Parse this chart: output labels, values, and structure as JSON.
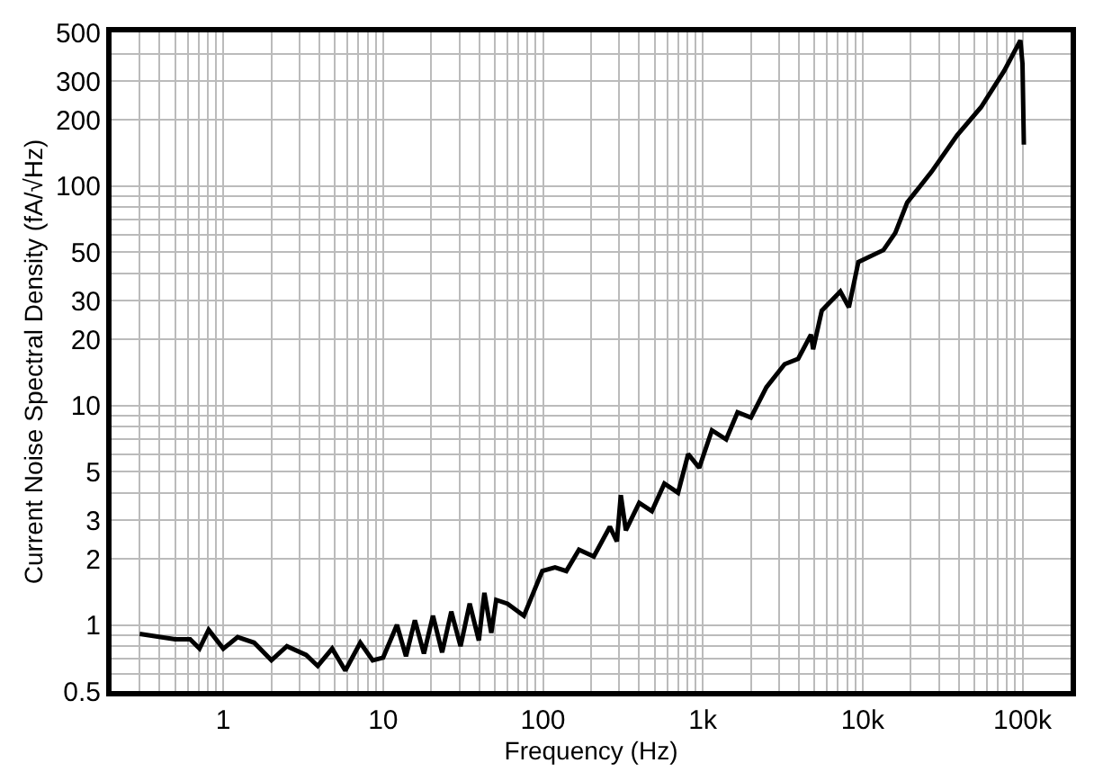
{
  "chart_data": {
    "type": "line",
    "xlabel": "Frequency (Hz)",
    "ylabel": "Current Noise Spectral Density (fA/√Hz)",
    "log": "xy",
    "grid": true,
    "marker": "none",
    "line_style": "solid",
    "xlim": [
      0.2,
      200000
    ],
    "ylim": [
      0.5,
      500
    ],
    "xticks": [
      1,
      10,
      100,
      {
        "value": 1000,
        "label": "1k"
      },
      {
        "value": 10000,
        "label": "10k"
      },
      {
        "value": 100000,
        "label": "100k"
      }
    ],
    "yticks": [
      0.5,
      1,
      2,
      3,
      5,
      10,
      20,
      30,
      50,
      100,
      200,
      300,
      500
    ],
    "series": [
      {
        "color": "#000000",
        "x": [
          0.3,
          0.5,
          0.62,
          0.71,
          0.81,
          1,
          1.23,
          1.56,
          2,
          2.5,
          3.3,
          3.9,
          4.8,
          5.8,
          7.2,
          8.6,
          10,
          12.2,
          13.9,
          15.8,
          18,
          20.5,
          23.4,
          26.7,
          30.5,
          34.8,
          39.7,
          43,
          47.5,
          51,
          60,
          76,
          87,
          99,
          119,
          140,
          168,
          208,
          262,
          290,
          307,
          330,
          400,
          480,
          575,
          700,
          810,
          950,
          1140,
          1400,
          1650,
          2000,
          2500,
          3250,
          3950,
          4750,
          4900,
          5550,
          7250,
          8200,
          9400,
          13500,
          16000,
          19000,
          27000,
          39000,
          55000,
          77000,
          97000,
          100000,
          102000
        ],
        "values": [
          0.91,
          0.86,
          0.86,
          0.78,
          0.95,
          0.78,
          0.88,
          0.83,
          0.69,
          0.8,
          0.73,
          0.65,
          0.78,
          0.62,
          0.83,
          0.69,
          0.71,
          1.0,
          0.72,
          1.05,
          0.74,
          1.1,
          0.75,
          1.15,
          0.8,
          1.25,
          0.85,
          1.4,
          0.92,
          1.3,
          1.25,
          1.1,
          1.4,
          1.76,
          1.83,
          1.76,
          2.2,
          2.05,
          2.8,
          2.4,
          3.9,
          2.7,
          3.6,
          3.3,
          4.4,
          4.0,
          6.0,
          5.2,
          7.7,
          7.0,
          9.3,
          8.8,
          12.1,
          15.4,
          16.3,
          21,
          18,
          27,
          33,
          28,
          45,
          51,
          61,
          84,
          116,
          170,
          228,
          335,
          460,
          360,
          154
        ]
      }
    ]
  }
}
